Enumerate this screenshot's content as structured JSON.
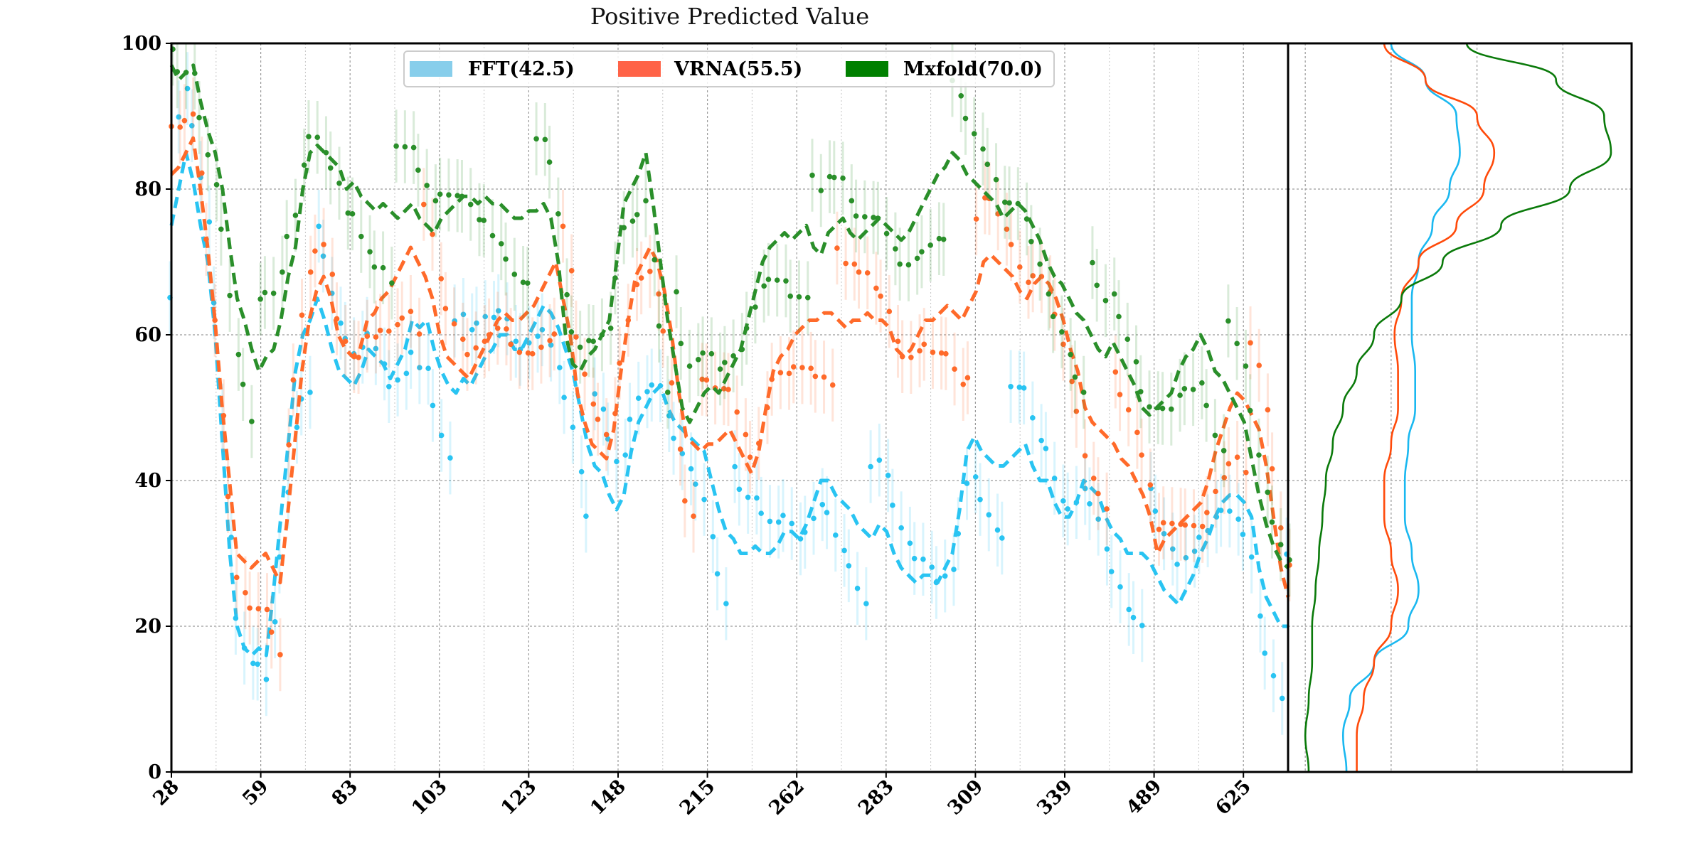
{
  "chart_data": {
    "type": "line",
    "title": "Positive Predicted Value",
    "xlabel": "",
    "ylabel": "",
    "ylim": [
      0,
      100
    ],
    "yticks": [
      0,
      20,
      40,
      60,
      80,
      100
    ],
    "x_tick_labels": [
      "28",
      "59",
      "83",
      "103",
      "123",
      "148",
      "215",
      "262",
      "283",
      "309",
      "339",
      "489",
      "625"
    ],
    "grid": true,
    "legend_position": "top-center",
    "series": [
      {
        "name": "FFT(42.5)",
        "color": "#29c4f2",
        "legend_color": "#87ceeb",
        "values": [
          75,
          80,
          85,
          81,
          75,
          70,
          60,
          45,
          30,
          20,
          17,
          16,
          17,
          16,
          25,
          35,
          45,
          55,
          60,
          62,
          65,
          62,
          58,
          55,
          54,
          53,
          55,
          58,
          57,
          56,
          54,
          56,
          58,
          62,
          61,
          62,
          58,
          55,
          53,
          52,
          54,
          53,
          55,
          57,
          58,
          60,
          60,
          58,
          58,
          60,
          62,
          64,
          63,
          61,
          58,
          55,
          50,
          45,
          42,
          41,
          38,
          36,
          38,
          44,
          48,
          50,
          52,
          53,
          50,
          48,
          47,
          46,
          45,
          44,
          40,
          36,
          33,
          32,
          30,
          30,
          31,
          30,
          30,
          31,
          33,
          33,
          32,
          34,
          37,
          40,
          40,
          38,
          37,
          36,
          34,
          33,
          32,
          34,
          33,
          30,
          28,
          27,
          26,
          27,
          27,
          26,
          28,
          30,
          36,
          44,
          46,
          44,
          43,
          42,
          42,
          43,
          44,
          45,
          42,
          40,
          40,
          37,
          35,
          35,
          37,
          40,
          39,
          38,
          35,
          33,
          32,
          30,
          30,
          30,
          29,
          27,
          25,
          24,
          23,
          25,
          27,
          30,
          32,
          35,
          37,
          38,
          38,
          37,
          35,
          28,
          24,
          22,
          20,
          20
        ]
      },
      {
        "name": "VRNA(55.5)",
        "color": "#ff6a2a",
        "legend_color": "#ff6347",
        "values": [
          82,
          83,
          85,
          87,
          80,
          72,
          62,
          50,
          40,
          30,
          29,
          28,
          29,
          30,
          28,
          26,
          35,
          45,
          55,
          62,
          66,
          68,
          65,
          60,
          58,
          57,
          58,
          62,
          63,
          65,
          66,
          68,
          70,
          72,
          70,
          68,
          65,
          60,
          57,
          56,
          55,
          54,
          56,
          58,
          60,
          62,
          63,
          62,
          62,
          63,
          64,
          66,
          68,
          70,
          65,
          60,
          52,
          48,
          45,
          44,
          43,
          47,
          55,
          62,
          68,
          70,
          72,
          70,
          66,
          60,
          52,
          46,
          45,
          44,
          45,
          45,
          46,
          47,
          45,
          43,
          41,
          44,
          50,
          55,
          57,
          58,
          60,
          61,
          62,
          62,
          63,
          63,
          62,
          61,
          62,
          62,
          63,
          62,
          62,
          61,
          58,
          57,
          58,
          60,
          62,
          62,
          63,
          64,
          63,
          62,
          64,
          66,
          70,
          71,
          70,
          69,
          68,
          66,
          65,
          67,
          68,
          67,
          65,
          62,
          58,
          55,
          50,
          48,
          47,
          46,
          45,
          43,
          42,
          40,
          38,
          35,
          30,
          32,
          33,
          34,
          35,
          36,
          37,
          40,
          44,
          47,
          50,
          52,
          51,
          49,
          47,
          42,
          35,
          28,
          24
        ]
      },
      {
        "name": "Mxfold(70.0)",
        "color": "#2a8f2a",
        "legend_color": "#008000",
        "values": [
          97,
          95,
          96,
          97,
          92,
          88,
          85,
          80,
          72,
          65,
          62,
          58,
          55,
          57,
          58,
          62,
          68,
          72,
          80,
          85,
          86,
          85,
          84,
          83,
          80,
          81,
          79,
          78,
          77,
          78,
          77,
          76,
          77,
          78,
          76,
          75,
          74,
          76,
          77,
          78,
          79,
          79,
          78,
          79,
          78,
          78,
          77,
          76,
          76,
          77,
          77,
          78,
          76,
          70,
          60,
          56,
          55,
          57,
          58,
          60,
          62,
          70,
          78,
          80,
          82,
          85,
          78,
          70,
          62,
          56,
          50,
          48,
          50,
          52,
          53,
          52,
          54,
          56,
          58,
          62,
          66,
          70,
          72,
          73,
          74,
          73,
          74,
          75,
          72,
          71,
          74,
          75,
          76,
          74,
          73,
          74,
          75,
          76,
          75,
          74,
          73,
          74,
          76,
          78,
          80,
          82,
          83,
          85,
          84,
          82,
          81,
          80,
          79,
          78,
          76,
          77,
          78,
          77,
          75,
          73,
          70,
          68,
          67,
          65,
          63,
          62,
          60,
          58,
          57,
          59,
          57,
          55,
          53,
          50,
          49,
          50,
          51,
          52,
          55,
          57,
          58,
          60,
          58,
          55,
          54,
          52,
          50,
          48,
          43,
          38,
          34,
          31,
          29,
          28
        ]
      }
    ],
    "density_panel": {
      "type": "line",
      "y": [
        0,
        5,
        10,
        15,
        20,
        25,
        30,
        35,
        40,
        45,
        50,
        55,
        60,
        65,
        70,
        75,
        80,
        85,
        90,
        95,
        100
      ],
      "series": [
        {
          "name": "FFT(42.5)",
          "x": [
            0.17,
            0.16,
            0.18,
            0.25,
            0.35,
            0.38,
            0.36,
            0.34,
            0.34,
            0.35,
            0.37,
            0.37,
            0.36,
            0.36,
            0.38,
            0.42,
            0.47,
            0.5,
            0.49,
            0.4,
            0.3
          ]
        },
        {
          "name": "VRNA(55.5)",
          "x": [
            0.2,
            0.2,
            0.22,
            0.25,
            0.3,
            0.32,
            0.3,
            0.28,
            0.28,
            0.3,
            0.32,
            0.32,
            0.31,
            0.33,
            0.38,
            0.49,
            0.57,
            0.6,
            0.55,
            0.4,
            0.28
          ]
        },
        {
          "name": "Mxfold(70.0)",
          "x": [
            0.06,
            0.05,
            0.06,
            0.07,
            0.07,
            0.08,
            0.09,
            0.1,
            0.11,
            0.13,
            0.16,
            0.2,
            0.25,
            0.33,
            0.45,
            0.62,
            0.82,
            0.94,
            0.92,
            0.78,
            0.52
          ]
        }
      ]
    }
  }
}
